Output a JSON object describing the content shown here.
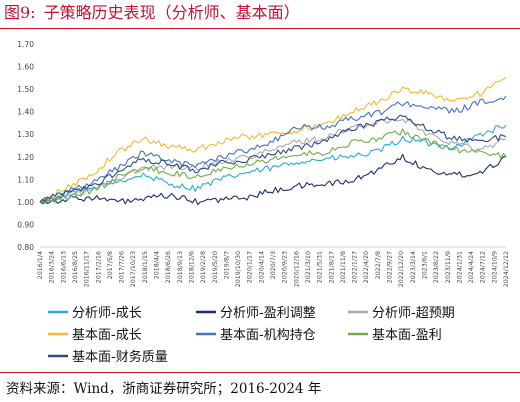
{
  "figure": {
    "label": "图9:",
    "title": "子策略历史表现（分析师、基本面）",
    "source": "资料来源：Wind，浙商证券研究所；2016-2024 年"
  },
  "chart_data": {
    "type": "line",
    "title": "",
    "xlabel": "",
    "ylabel": "",
    "ylim": [
      0.8,
      1.7
    ],
    "yticks": [
      "0.80",
      "0.90",
      "1.00",
      "1.10",
      "1.20",
      "1.30",
      "1.40",
      "1.50",
      "1.60",
      "1.70"
    ],
    "grid": false,
    "legend_position": "bottom",
    "xtick_labels": [
      "2016/1/4",
      "2016/3/24",
      "2016/6/13",
      "2016/8/25",
      "2016/11/17",
      "2017/2/16",
      "2017/5/8",
      "2017/7/26",
      "2017/10/23",
      "2018/1/15",
      "2018/4/4",
      "2018/6/26",
      "2018/9/13",
      "2018/12/6",
      "2019/2/28",
      "2019/5/20",
      "2019/8/7",
      "2019/10/30",
      "2020/1/17",
      "2020/4/14",
      "2020/7/3",
      "2020/9/23",
      "2020/12/16",
      "2021/3/10",
      "2021/5/31",
      "2021/8/17",
      "2021/11/8",
      "2022/1/27",
      "2022/4/20",
      "2022/7/8",
      "2022/9/27",
      "2022/12/20",
      "2023/3/14",
      "2023/6/1",
      "2023/8/22",
      "2023/11/9",
      "2024/1/31",
      "2024/4/24",
      "2024/7/12",
      "2024/10/9",
      "2024/12/12"
    ],
    "x_date_range": [
      "2016/1/4",
      "2024/12/31"
    ],
    "series": [
      {
        "name": "分析师-成长",
        "color": "#29a9e0",
        "x": [
          "2016/1/4",
          "2016/7/1",
          "2017/1/3",
          "2017/7/3",
          "2018/1/2",
          "2018/7/2",
          "2019/1/2",
          "2019/7/1",
          "2020/1/2",
          "2020/7/1",
          "2021/1/4",
          "2021/7/1",
          "2022/1/4",
          "2022/7/1",
          "2023/1/3",
          "2023/7/3",
          "2024/1/2",
          "2024/7/1",
          "2024/12/31"
        ],
        "y": [
          1.0,
          1.03,
          1.06,
          1.09,
          1.12,
          1.08,
          1.06,
          1.1,
          1.13,
          1.15,
          1.18,
          1.19,
          1.2,
          1.22,
          1.28,
          1.26,
          1.24,
          1.3,
          1.34
        ]
      },
      {
        "name": "分析师-盈利调整",
        "color": "#1a2f6b",
        "x": [
          "2016/1/4",
          "2016/7/1",
          "2017/1/3",
          "2017/7/3",
          "2018/1/2",
          "2018/7/2",
          "2019/1/2",
          "2019/7/1",
          "2020/1/2",
          "2020/7/1",
          "2021/1/4",
          "2021/7/1",
          "2022/1/4",
          "2022/7/1",
          "2023/1/3",
          "2023/7/3",
          "2024/1/2",
          "2024/7/1",
          "2024/12/31"
        ],
        "y": [
          1.0,
          1.01,
          1.02,
          1.0,
          1.01,
          1.03,
          1.0,
          1.01,
          1.02,
          1.05,
          1.07,
          1.08,
          1.09,
          1.14,
          1.2,
          1.14,
          1.12,
          1.13,
          1.2
        ]
      },
      {
        "name": "分析师-超预期",
        "color": "#a9a9a9",
        "x": [
          "2016/1/4",
          "2016/7/1",
          "2017/1/3",
          "2017/7/3",
          "2018/1/2",
          "2018/7/2",
          "2019/1/2",
          "2019/7/1",
          "2020/1/2",
          "2020/7/1",
          "2021/1/4",
          "2021/7/1",
          "2022/1/4",
          "2022/7/1",
          "2023/1/3",
          "2023/7/3",
          "2024/1/2",
          "2024/7/1",
          "2024/12/31"
        ],
        "y": [
          1.0,
          1.03,
          1.05,
          1.1,
          1.15,
          1.16,
          1.15,
          1.18,
          1.2,
          1.23,
          1.27,
          1.28,
          1.33,
          1.35,
          1.37,
          1.3,
          1.26,
          1.23,
          1.28
        ]
      },
      {
        "name": "基本面-成长",
        "color": "#f7b72f",
        "x": [
          "2016/1/4",
          "2016/7/1",
          "2017/1/3",
          "2017/7/3",
          "2018/1/2",
          "2018/7/2",
          "2019/1/2",
          "2019/7/1",
          "2020/1/2",
          "2020/7/1",
          "2021/1/4",
          "2021/7/1",
          "2022/1/4",
          "2022/7/1",
          "2023/1/3",
          "2023/7/3",
          "2024/1/2",
          "2024/7/1",
          "2024/12/31"
        ],
        "y": [
          1.0,
          1.06,
          1.12,
          1.22,
          1.28,
          1.25,
          1.23,
          1.27,
          1.29,
          1.3,
          1.32,
          1.34,
          1.4,
          1.44,
          1.5,
          1.48,
          1.45,
          1.48,
          1.55
        ]
      },
      {
        "name": "基本面-机构持仓",
        "color": "#4472c4",
        "x": [
          "2016/1/4",
          "2016/7/1",
          "2017/1/3",
          "2017/7/3",
          "2018/1/2",
          "2018/7/2",
          "2019/1/2",
          "2019/7/1",
          "2020/1/2",
          "2020/7/1",
          "2021/1/4",
          "2021/7/1",
          "2022/1/4",
          "2022/7/1",
          "2023/1/3",
          "2023/7/3",
          "2024/1/2",
          "2024/7/1",
          "2024/12/31"
        ],
        "y": [
          1.0,
          1.04,
          1.08,
          1.15,
          1.22,
          1.18,
          1.16,
          1.2,
          1.23,
          1.27,
          1.33,
          1.33,
          1.37,
          1.39,
          1.44,
          1.42,
          1.4,
          1.44,
          1.47
        ]
      },
      {
        "name": "基本面-盈利",
        "color": "#70ad47",
        "x": [
          "2016/1/4",
          "2016/7/1",
          "2017/1/3",
          "2017/7/3",
          "2018/1/2",
          "2018/7/2",
          "2019/1/2",
          "2019/7/1",
          "2020/1/2",
          "2020/7/1",
          "2021/1/4",
          "2021/7/1",
          "2022/1/4",
          "2022/7/1",
          "2023/1/3",
          "2023/7/3",
          "2024/1/2",
          "2024/7/1",
          "2024/12/31"
        ],
        "y": [
          1.0,
          1.02,
          1.05,
          1.11,
          1.15,
          1.13,
          1.11,
          1.15,
          1.17,
          1.19,
          1.21,
          1.22,
          1.26,
          1.28,
          1.31,
          1.27,
          1.23,
          1.22,
          1.2
        ]
      },
      {
        "name": "基本面-财务质量",
        "color": "#2e4a86",
        "x": [
          "2016/1/4",
          "2016/7/1",
          "2017/1/3",
          "2017/7/3",
          "2018/1/2",
          "2018/7/2",
          "2019/1/2",
          "2019/7/1",
          "2020/1/2",
          "2020/7/1",
          "2021/1/4",
          "2021/7/1",
          "2022/1/4",
          "2022/7/1",
          "2023/1/3",
          "2023/7/3",
          "2024/1/2",
          "2024/7/1",
          "2024/12/31"
        ],
        "y": [
          1.0,
          1.04,
          1.07,
          1.13,
          1.19,
          1.17,
          1.14,
          1.17,
          1.19,
          1.21,
          1.24,
          1.27,
          1.32,
          1.35,
          1.38,
          1.32,
          1.28,
          1.27,
          1.29
        ]
      }
    ]
  }
}
